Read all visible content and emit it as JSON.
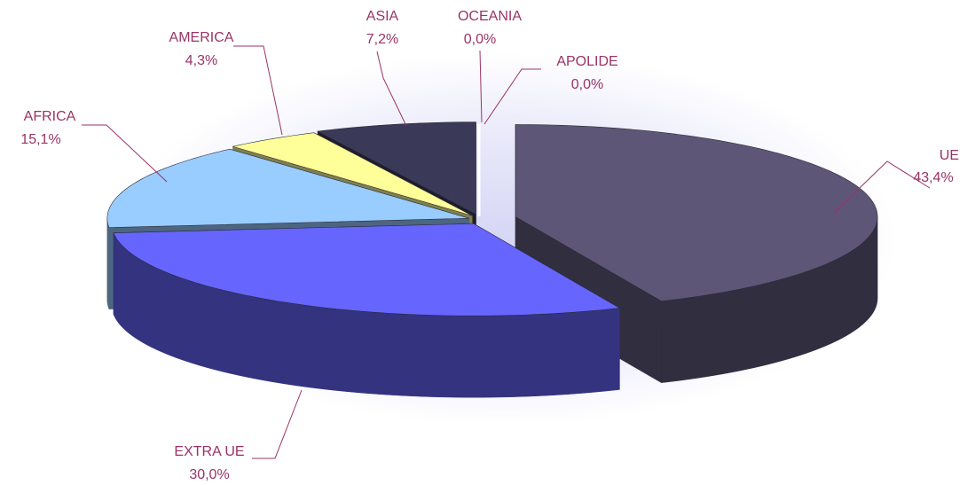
{
  "chart_data": {
    "type": "pie",
    "style": "3d-exploded",
    "title": "",
    "slices": [
      {
        "label": "UE",
        "value": 43.4,
        "value_label": "43,4%",
        "color": "#5e5676",
        "side_color": "#312e40"
      },
      {
        "label": "EXTRA UE",
        "value": 30.0,
        "value_label": "30,0%",
        "color": "#6666ff",
        "side_color": "#333380"
      },
      {
        "label": "AFRICA",
        "value": 15.1,
        "value_label": "15,1%",
        "color": "#99ccff",
        "side_color": "#4d6680"
      },
      {
        "label": "AMERICA",
        "value": 4.3,
        "value_label": "4,3%",
        "color": "#ffff99",
        "side_color": "#80804d"
      },
      {
        "label": "ASIA",
        "value": 7.2,
        "value_label": "7,2%",
        "color": "#3a3a58",
        "side_color": "#1d1d2c"
      },
      {
        "label": "OCEANIA",
        "value": 0.0,
        "value_label": "0,0%",
        "color": "#ffffff",
        "side_color": "#cccccc"
      },
      {
        "label": "APOLIDE",
        "value": 0.0,
        "value_label": "0,0%",
        "color": "#ffffff",
        "side_color": "#cccccc"
      }
    ],
    "label_color": "#993366",
    "legend": "none"
  }
}
